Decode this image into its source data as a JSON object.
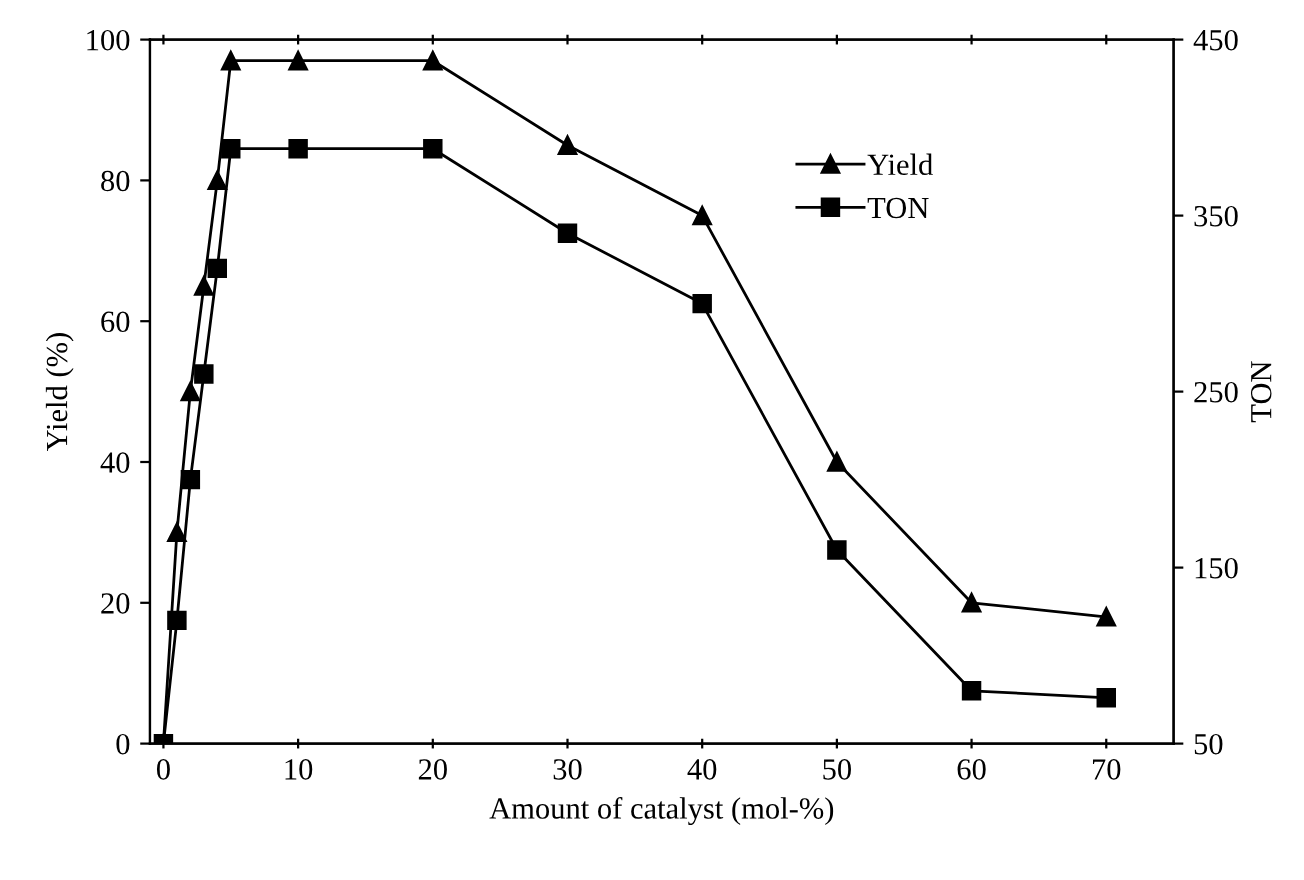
{
  "chart_data": {
    "type": "line",
    "xlabel": "Amount of catalyst (mol-%)",
    "ylabel": "Yield (%)",
    "y2label": "TON",
    "x": [
      0,
      1,
      2,
      3,
      4,
      5,
      10,
      20,
      30,
      40,
      50,
      60,
      70
    ],
    "series": [
      {
        "name": "Yield",
        "color": "#000000",
        "marker": "triangle",
        "values": [
          0,
          30,
          50,
          65,
          80,
          97,
          97,
          97,
          85,
          75,
          40,
          20,
          18
        ]
      },
      {
        "name": "TON",
        "color": "#000000",
        "marker": "square",
        "axis": "y2",
        "values": [
          50,
          120,
          200,
          260,
          320,
          388,
          388,
          388,
          340,
          300,
          160,
          80,
          76
        ]
      }
    ],
    "xlim": [
      -1,
      75
    ],
    "xticks": [
      0,
      10,
      20,
      30,
      40,
      50,
      60,
      70
    ],
    "ylim": [
      0,
      100
    ],
    "yticks": [
      0,
      20,
      40,
      60,
      80,
      100
    ],
    "y2lim": [
      50,
      450
    ],
    "y2ticks": [
      50,
      150,
      250,
      350,
      450
    ],
    "grid": false,
    "legend": "top right",
    "line_style": "solid"
  }
}
